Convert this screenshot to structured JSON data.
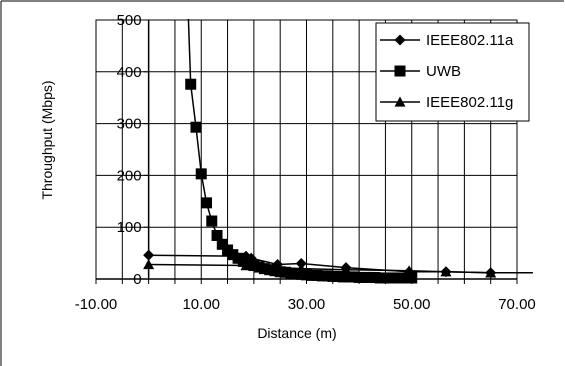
{
  "chart_data": {
    "type": "scatter",
    "title": "",
    "xlabel": "Distance (m)",
    "ylabel": "Throughput (Mbps)",
    "xlim": [
      -10,
      70
    ],
    "ylim": [
      0,
      500
    ],
    "x_ticks": [
      -10,
      10,
      30,
      50,
      70
    ],
    "x_tick_labels": [
      "-10.00",
      "10.00",
      "30.00",
      "50.00",
      "70.00"
    ],
    "y_ticks": [
      0,
      100,
      200,
      300,
      400,
      500
    ],
    "y_tick_labels": [
      "0",
      "100",
      "200",
      "300",
      "400",
      "500"
    ],
    "grid": true,
    "legend_position": "top-right",
    "series": [
      {
        "name": "IEEE802.11a",
        "marker": "diamond",
        "color": "#000000",
        "x": [
          0,
          18.5,
          19.5,
          24.5,
          29,
          37.5,
          49.5,
          56.5,
          65,
          73
        ],
        "y": [
          46,
          44,
          40,
          28,
          30,
          22,
          14,
          14,
          12,
          12
        ]
      },
      {
        "name": "UWB",
        "marker": "square",
        "color": "#000000",
        "x": [
          8,
          9,
          10,
          11,
          12,
          13,
          14,
          15,
          16,
          17,
          18,
          19,
          20,
          21,
          22,
          23,
          24,
          25,
          26,
          27,
          28,
          29,
          30,
          31,
          32,
          33,
          34,
          35,
          36,
          37,
          38,
          39,
          40,
          41,
          42,
          43,
          44,
          45,
          46,
          47,
          48,
          49,
          50
        ],
        "y": [
          376,
          293,
          203,
          147,
          112,
          84,
          67,
          56,
          47,
          40,
          34,
          30,
          26,
          23,
          20,
          18,
          16,
          14,
          13,
          11,
          10,
          9,
          8,
          7,
          7,
          6,
          6,
          5,
          5,
          4,
          4,
          4,
          3,
          3,
          3,
          3,
          2,
          2,
          2,
          2,
          2,
          2,
          2
        ]
      },
      {
        "name": "IEEE802.11g",
        "marker": "triangle",
        "color": "#000000",
        "x": [
          0,
          18.5,
          24.5,
          29,
          37.5,
          49.5,
          56.5,
          65,
          73
        ],
        "y": [
          28,
          26,
          22,
          20,
          18,
          16,
          14,
          12,
          12
        ]
      }
    ]
  }
}
